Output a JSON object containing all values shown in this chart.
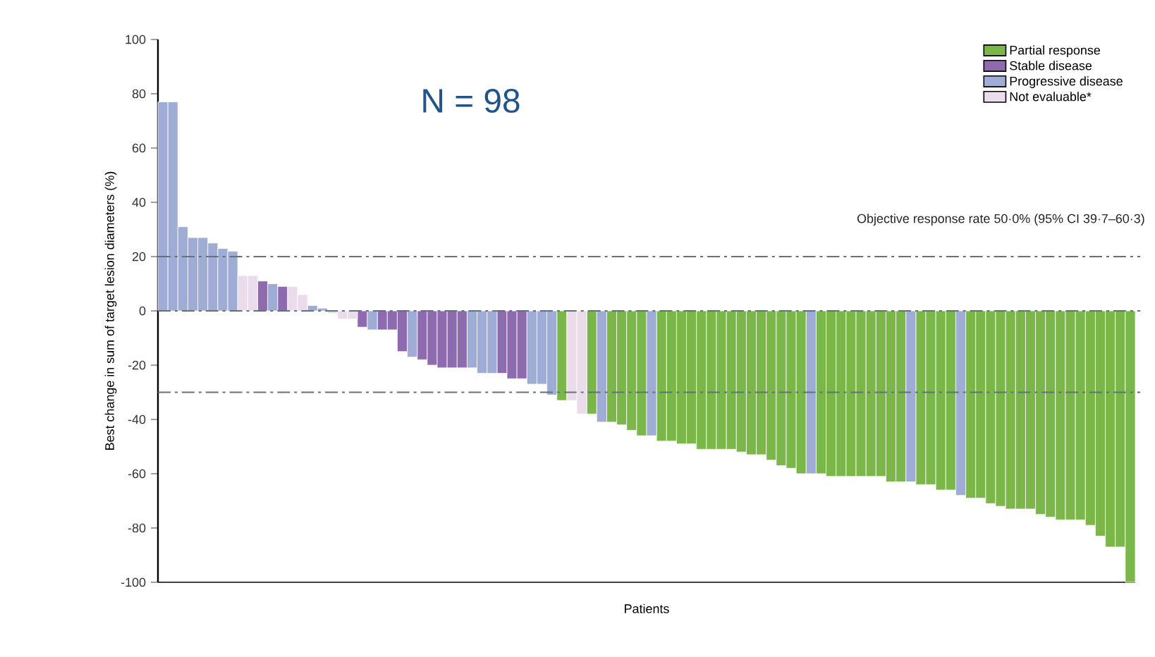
{
  "chart_data": {
    "type": "bar",
    "xlabel": "Patients",
    "ylabel": "Best change in sum of target lesion diameters (%)",
    "categories": [
      null,
      null,
      null,
      null,
      null,
      null,
      null,
      null,
      null,
      null,
      null,
      null,
      null,
      null,
      null,
      null,
      null,
      null,
      null,
      null,
      null,
      null,
      null,
      null,
      null,
      null,
      null,
      null,
      null,
      null,
      null,
      null,
      null,
      null,
      null,
      null,
      null,
      null,
      null,
      null,
      null,
      null,
      null,
      null,
      null,
      null,
      null,
      null,
      null,
      null,
      null,
      null,
      null,
      null,
      null,
      null,
      null,
      null,
      null,
      null,
      null,
      null,
      null,
      null,
      null,
      null,
      null,
      null,
      null,
      null,
      null,
      null,
      null,
      null,
      null,
      null,
      null,
      null,
      null,
      null,
      null,
      null,
      null,
      null,
      null,
      null,
      null,
      null,
      null,
      null,
      null,
      null,
      null,
      null,
      null,
      null,
      null,
      null
    ],
    "series": [
      {
        "name": "Partial response",
        "color": "#7ab648",
        "values": [
          null,
          null,
          null,
          null,
          null,
          null,
          null,
          null,
          null,
          null,
          null,
          null,
          null,
          null,
          null,
          null,
          null,
          null,
          null,
          null,
          null,
          null,
          null,
          null,
          null,
          null,
          null,
          null,
          null,
          null,
          null,
          null,
          null,
          null,
          null,
          null,
          null,
          null,
          null,
          null,
          -33,
          null,
          null,
          -38,
          null,
          -41,
          -42,
          -44,
          -46,
          null,
          -48,
          -48,
          -49,
          -49,
          -51,
          -51,
          -51,
          -51,
          -52,
          -53,
          -53,
          -55,
          -57,
          -58,
          -60,
          null,
          -60,
          -61,
          -61,
          -61,
          -61,
          -61,
          -61,
          -63,
          -63,
          null,
          -64,
          -64,
          -66,
          -66,
          null,
          -69,
          -69,
          -71,
          -72,
          -73,
          -73,
          -73,
          -75,
          -76,
          -77,
          -77,
          -77,
          -79,
          -83,
          -87,
          -87,
          -100
        ]
      },
      {
        "name": "Stable disease",
        "color": "#8e6aaf",
        "values": [
          null,
          null,
          null,
          null,
          null,
          null,
          null,
          null,
          null,
          null,
          11,
          null,
          9,
          null,
          null,
          null,
          null,
          null,
          null,
          null,
          -6,
          null,
          -7,
          -7,
          -15,
          null,
          -18,
          -20,
          -21,
          -21,
          -21,
          null,
          null,
          null,
          -23,
          -25,
          -25,
          null,
          null,
          null,
          null,
          null,
          null,
          null,
          null,
          null,
          null,
          null,
          null,
          null,
          null,
          null,
          null,
          null,
          null,
          null,
          null,
          null,
          null,
          null,
          null,
          null,
          null,
          null,
          null,
          null,
          null,
          null,
          null,
          null,
          null,
          null,
          null,
          null,
          null,
          null,
          null,
          null,
          null,
          null,
          null,
          null,
          null,
          null,
          null,
          null,
          null,
          null,
          null,
          null,
          null,
          null,
          null,
          null,
          null,
          null,
          null,
          null
        ]
      },
      {
        "name": "Progressive disease",
        "color": "#9fadd6",
        "values": [
          77,
          77,
          31,
          27,
          27,
          25,
          23,
          22,
          null,
          null,
          null,
          10,
          null,
          null,
          null,
          2,
          1,
          null,
          null,
          null,
          null,
          -7,
          null,
          null,
          null,
          -17,
          null,
          null,
          null,
          null,
          null,
          -21,
          -23,
          -23,
          null,
          null,
          null,
          -27,
          -27,
          -31,
          null,
          null,
          null,
          null,
          -41,
          null,
          null,
          null,
          null,
          -46,
          null,
          null,
          null,
          null,
          null,
          null,
          null,
          null,
          null,
          null,
          null,
          null,
          null,
          null,
          null,
          -60,
          null,
          null,
          null,
          null,
          null,
          null,
          null,
          null,
          null,
          -63,
          null,
          null,
          null,
          null,
          -68,
          null,
          null,
          null,
          null,
          null,
          null,
          null,
          null,
          null,
          null,
          null,
          null,
          null,
          null,
          null,
          null,
          null
        ]
      },
      {
        "name": "Not evaluable*",
        "color": "#eadcea",
        "values": [
          null,
          null,
          null,
          null,
          null,
          null,
          null,
          null,
          13,
          13,
          null,
          null,
          null,
          9,
          6,
          null,
          null,
          -1,
          -3,
          -3,
          null,
          null,
          null,
          null,
          null,
          null,
          null,
          null,
          null,
          null,
          null,
          null,
          null,
          null,
          null,
          null,
          null,
          null,
          null,
          null,
          null,
          -33,
          -38,
          null,
          null,
          null,
          null,
          null,
          null,
          null,
          null,
          null,
          null,
          null,
          null,
          null,
          null,
          null,
          null,
          null,
          null,
          null,
          null,
          null,
          null,
          null,
          null,
          null,
          null,
          null,
          null,
          null,
          null,
          null,
          null,
          null,
          null,
          null,
          null,
          null,
          null,
          null,
          null,
          null,
          null,
          null,
          null,
          null,
          null,
          null,
          null,
          null,
          null,
          null,
          null,
          null,
          null,
          null
        ]
      }
    ],
    "ylim": [
      -100,
      100
    ],
    "yticks": [
      -100,
      -80,
      -60,
      -40,
      -20,
      0,
      20,
      40,
      60,
      80,
      100
    ],
    "ref_lines": [
      {
        "axis": "y",
        "value": 20,
        "color": "#5f7379",
        "line_style": "dashed"
      },
      {
        "axis": "y",
        "value": 0,
        "color": "#5f7379",
        "line_style": "dashed"
      },
      {
        "axis": "y",
        "value": -30,
        "color": "#5f7379",
        "line_style": "dashed"
      }
    ],
    "annotations": [
      "N = 98",
      "Objective response rate 50·0% (95% CI 39·7–60·3)"
    ],
    "legend": "top right"
  }
}
